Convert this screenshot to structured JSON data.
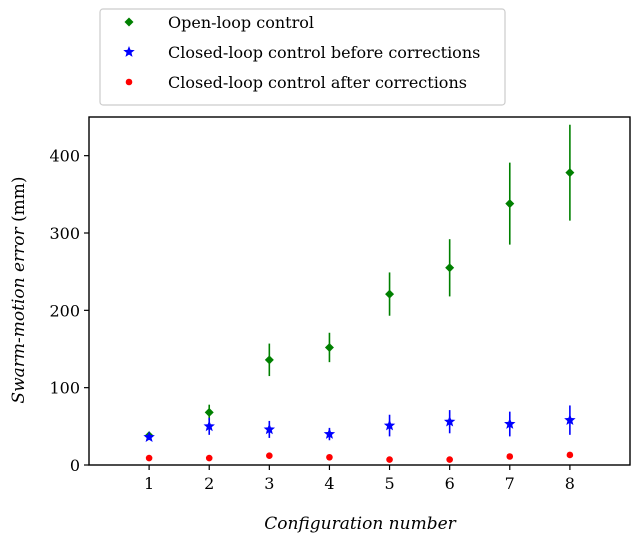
{
  "chart_data": {
    "type": "scatter",
    "xlabel": "Configuration number",
    "ylabel_italic": "Swarm-motion error",
    "ylabel_unit": " (mm)",
    "xlim": [
      0,
      9
    ],
    "ylim": [
      0,
      450
    ],
    "xticks": [
      1,
      2,
      3,
      4,
      5,
      6,
      7,
      8
    ],
    "yticks": [
      0,
      100,
      200,
      300,
      400
    ],
    "grid": false,
    "legend_position": "top-left, outside plot",
    "series": [
      {
        "name": "Open-loop control",
        "color": "#008000",
        "marker": "diamond",
        "x": [
          1,
          2,
          3,
          4,
          5,
          6,
          7,
          8
        ],
        "y": [
          38,
          68,
          136,
          152,
          221,
          255,
          338,
          378
        ],
        "err": [
          3,
          10,
          21,
          19,
          28,
          37,
          53,
          62
        ]
      },
      {
        "name": "Closed-loop control before corrections",
        "color": "#0000ff",
        "marker": "star",
        "x": [
          1,
          2,
          3,
          4,
          5,
          6,
          7,
          8
        ],
        "y": [
          36,
          50,
          46,
          40,
          51,
          56,
          53,
          58
        ],
        "err": [
          3,
          11,
          11,
          8,
          14,
          15,
          16,
          19
        ]
      },
      {
        "name": "Closed-loop control after corrections",
        "color": "#ff0000",
        "marker": "circle",
        "x": [
          1,
          2,
          3,
          4,
          5,
          6,
          7,
          8
        ],
        "y": [
          9,
          9,
          12,
          10,
          7,
          7,
          11,
          13
        ],
        "err": [
          0,
          0,
          0,
          0,
          0,
          0,
          0,
          0
        ]
      }
    ]
  }
}
